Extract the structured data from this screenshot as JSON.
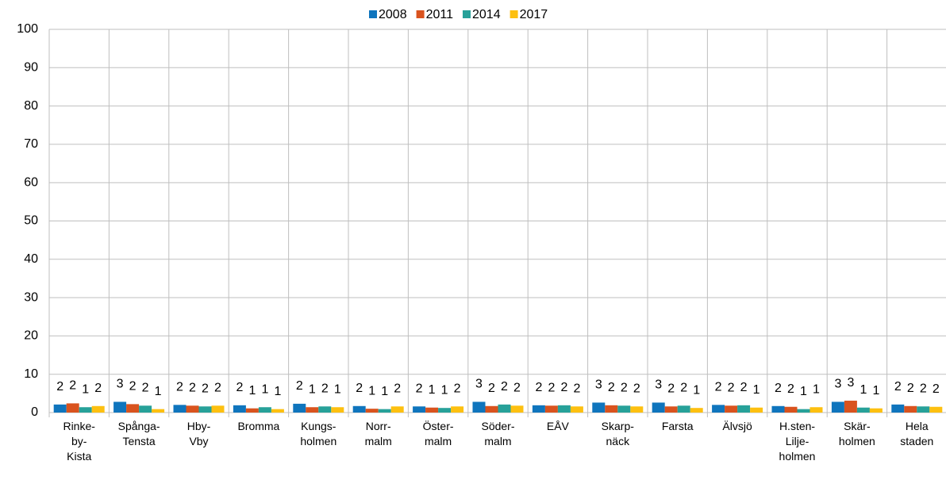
{
  "chart_data": {
    "type": "bar",
    "categories": [
      "Rinke-\nby-\nKista",
      "Spånga-\nTensta",
      "Hby-\nVby",
      "Bromma",
      "Kungs-\nholmen",
      "Norr-\nmalm",
      "Öster-\nmalm",
      "Söder-\nmalm",
      "EÅV",
      "Skarp-\nnäck",
      "Farsta",
      "Älvsjö",
      "H.sten-\nLilje-\nholmen",
      "Skär-\nholmen",
      "Hela\nstaden"
    ],
    "series": [
      {
        "name": "2008",
        "color": "#0f75bd",
        "values": [
          2.1,
          2.8,
          2.0,
          1.9,
          2.3,
          1.7,
          1.6,
          2.8,
          1.9,
          2.6,
          2.6,
          2.0,
          1.7,
          2.8,
          2.1
        ],
        "value_labels": [
          "2",
          "3",
          "2",
          "2",
          "2",
          "2",
          "2",
          "3",
          "2",
          "3",
          "3",
          "2",
          "2",
          "3",
          "2"
        ]
      },
      {
        "name": "2011",
        "color": "#d9531e",
        "values": [
          2.4,
          2.2,
          1.8,
          1.1,
          1.4,
          1.0,
          1.3,
          1.7,
          1.8,
          1.9,
          1.6,
          1.8,
          1.5,
          3.1,
          1.7
        ],
        "value_labels": [
          "2",
          "2",
          "2",
          "1",
          "1",
          "1",
          "1",
          "2",
          "2",
          "2",
          "2",
          "2",
          "2",
          "3",
          "2"
        ]
      },
      {
        "name": "2014",
        "color": "#27a199",
        "values": [
          1.4,
          1.8,
          1.6,
          1.4,
          1.6,
          0.9,
          1.2,
          2.1,
          1.9,
          1.8,
          1.8,
          1.9,
          0.9,
          1.3,
          1.6
        ],
        "value_labels": [
          "1",
          "2",
          "2",
          "1",
          "2",
          "1",
          "1",
          "2",
          "2",
          "2",
          "2",
          "2",
          "1",
          "1",
          "2"
        ]
      },
      {
        "name": "2017",
        "color": "#fdc010",
        "values": [
          1.7,
          0.9,
          1.8,
          0.9,
          1.4,
          1.6,
          1.6,
          1.8,
          1.6,
          1.6,
          1.2,
          1.3,
          1.4,
          1.1,
          1.5
        ],
        "value_labels": [
          "2",
          "1",
          "2",
          "1",
          "1",
          "2",
          "2",
          "2",
          "2",
          "2",
          "1",
          "1",
          "1",
          "1",
          "2"
        ]
      }
    ],
    "ylim": [
      0,
      100
    ],
    "yticks": [
      0,
      10,
      20,
      30,
      40,
      50,
      60,
      70,
      80,
      90,
      100
    ],
    "grid": true,
    "legend": "top"
  }
}
